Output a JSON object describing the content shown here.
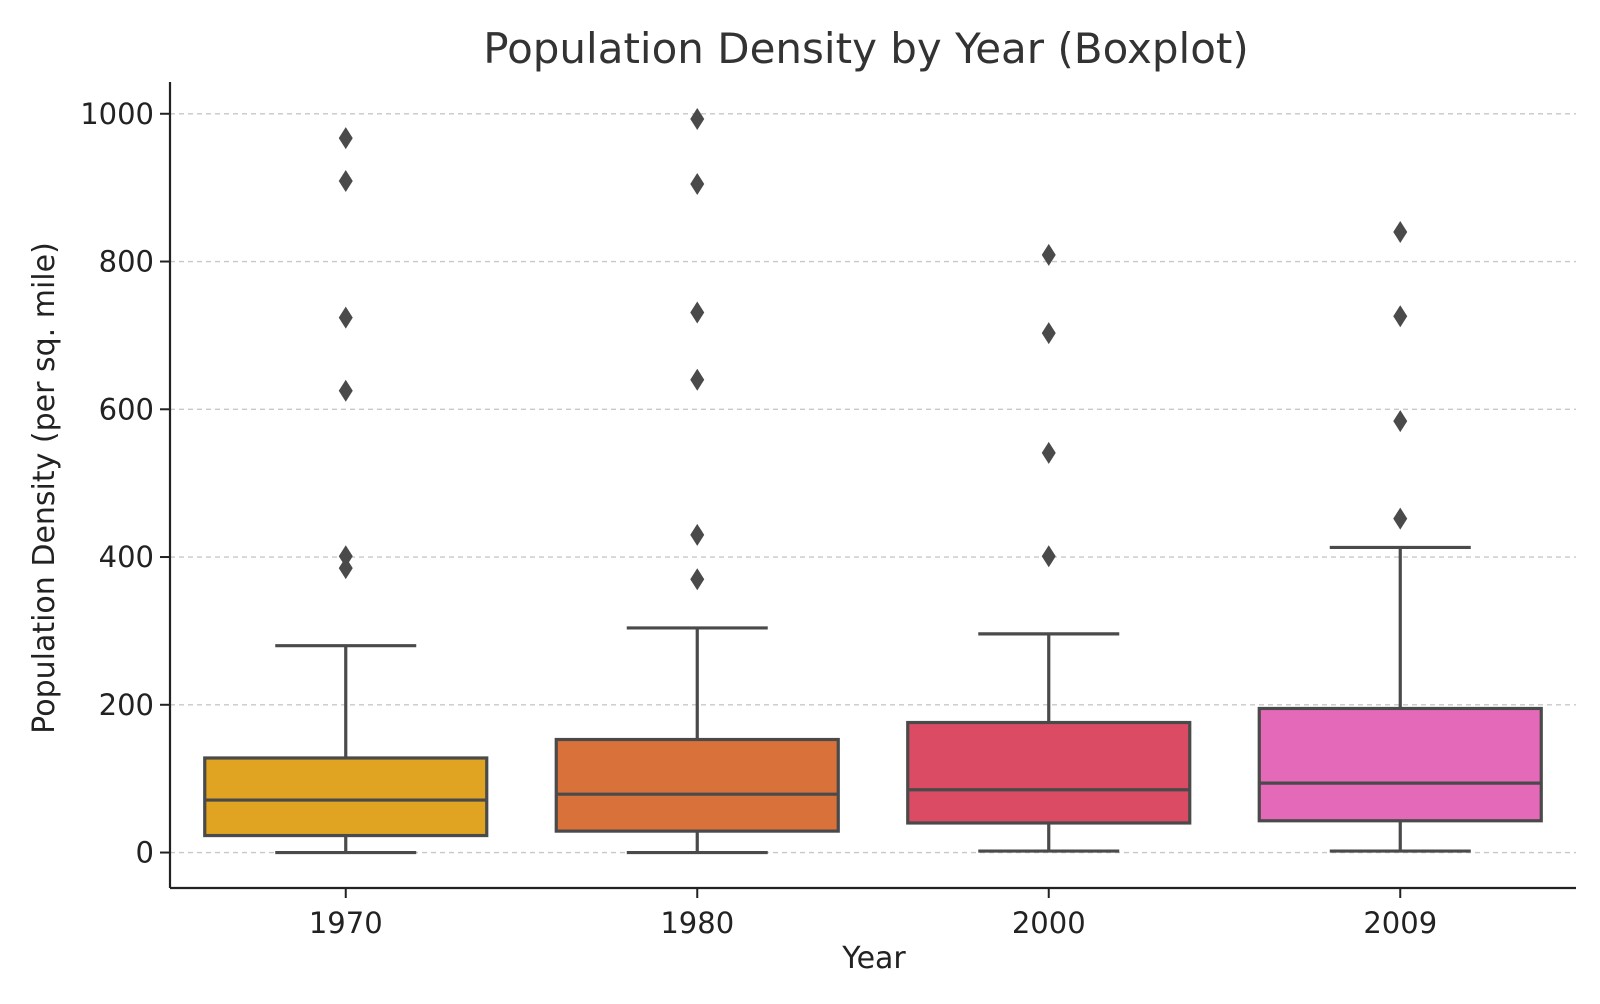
{
  "chart_data": {
    "type": "box",
    "title": "Population Density by Year (Boxplot)",
    "xlabel": "Year",
    "ylabel": "Population Density (per sq. mile)",
    "categories": [
      "1970",
      "1980",
      "2000",
      "2009"
    ],
    "ylim": [
      -48,
      1043
    ],
    "yticks": [
      0,
      200,
      400,
      600,
      800,
      1000
    ],
    "grid": "horizontal dashed",
    "colors": {
      "box_stroke": "#4a4a4a",
      "fills": [
        "#E1A322",
        "#D9723A",
        "#DC4B64",
        "#E46AB9"
      ]
    },
    "boxes": [
      {
        "category": "1970",
        "whisker_low": 0,
        "q1": 23,
        "median": 71,
        "q3": 128,
        "whisker_high": 280,
        "outliers": [
          385,
          401,
          625,
          724,
          909,
          967
        ]
      },
      {
        "category": "1980",
        "whisker_low": 0,
        "q1": 29,
        "median": 79,
        "q3": 153,
        "whisker_high": 304,
        "outliers": [
          370,
          430,
          640,
          731,
          905,
          993
        ]
      },
      {
        "category": "2000",
        "whisker_low": 2,
        "q1": 40,
        "median": 85,
        "q3": 176,
        "whisker_high": 296,
        "outliers": [
          401,
          541,
          703,
          809
        ]
      },
      {
        "category": "2009",
        "whisker_low": 2,
        "q1": 43,
        "median": 94,
        "q3": 195,
        "whisker_high": 413,
        "outliers": [
          452,
          584,
          726,
          840
        ]
      }
    ]
  }
}
